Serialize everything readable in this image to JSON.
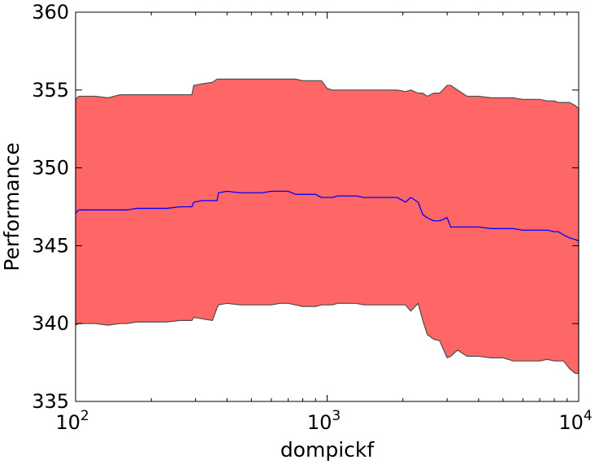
{
  "chart_data": {
    "type": "area",
    "xlabel": "dompickf",
    "ylabel": "Performance",
    "x_scale": "log",
    "xlim": [
      100,
      10000
    ],
    "ylim": [
      335,
      360
    ],
    "grid": false,
    "x_ticks": [
      {
        "value": 100,
        "base": "10",
        "exp": "2"
      },
      {
        "value": 1000,
        "base": "10",
        "exp": "3"
      },
      {
        "value": 10000,
        "base": "10",
        "exp": "4"
      }
    ],
    "y_ticks": [
      {
        "value": 335,
        "label": "335"
      },
      {
        "value": 340,
        "label": "340"
      },
      {
        "value": 345,
        "label": "345"
      },
      {
        "value": 350,
        "label": "350"
      },
      {
        "value": 355,
        "label": "355"
      },
      {
        "value": 360,
        "label": "360"
      }
    ],
    "colors": {
      "band_fill": "#ff6666",
      "band_edge": "#4d4d4d",
      "mean_line": "#0000ff"
    },
    "x": [
      100,
      103,
      110,
      120,
      135,
      150,
      160,
      175,
      200,
      230,
      260,
      290,
      295,
      320,
      350,
      365,
      370,
      400,
      450,
      500,
      550,
      600,
      650,
      700,
      750,
      800,
      850,
      900,
      950,
      1000,
      1050,
      1100,
      1200,
      1300,
      1400,
      1500,
      1700,
      1900,
      2050,
      2150,
      2300,
      2400,
      2500,
      2650,
      2800,
      3000,
      3100,
      3300,
      3600,
      4000,
      4500,
      5000,
      5500,
      6000,
      6500,
      7000,
      7500,
      8000,
      8300,
      8700,
      9200,
      9700,
      10000
    ],
    "series": [
      {
        "role": "mean",
        "values": [
          347.1,
          347.3,
          347.3,
          347.3,
          347.3,
          347.3,
          347.3,
          347.4,
          347.4,
          347.4,
          347.5,
          347.5,
          347.8,
          347.9,
          347.9,
          347.9,
          348.4,
          348.5,
          348.4,
          348.4,
          348.4,
          348.5,
          348.5,
          348.5,
          348.3,
          348.3,
          348.3,
          348.3,
          348.1,
          348.1,
          348.1,
          348.2,
          348.2,
          348.2,
          348.1,
          348.1,
          348.1,
          348.1,
          347.8,
          348.1,
          347.8,
          347.0,
          346.8,
          346.6,
          346.6,
          346.8,
          346.2,
          346.2,
          346.2,
          346.2,
          346.1,
          346.1,
          346.1,
          346.0,
          346.0,
          346.0,
          346.0,
          345.9,
          345.9,
          345.7,
          345.5,
          345.4,
          345.3
        ]
      },
      {
        "role": "upper",
        "values": [
          354.4,
          354.6,
          354.6,
          354.6,
          354.5,
          354.7,
          354.7,
          354.7,
          354.7,
          354.7,
          354.7,
          354.7,
          355.3,
          355.4,
          355.5,
          355.7,
          355.7,
          355.7,
          355.7,
          355.7,
          355.7,
          355.7,
          355.7,
          355.7,
          355.7,
          355.6,
          355.6,
          355.6,
          355.6,
          355.1,
          355.0,
          355.0,
          355.0,
          355.0,
          355.0,
          355.0,
          355.0,
          355.0,
          354.9,
          355.0,
          354.8,
          354.8,
          354.6,
          354.8,
          354.8,
          355.3,
          355.3,
          355.0,
          354.6,
          354.6,
          354.5,
          354.5,
          354.5,
          354.4,
          354.4,
          354.4,
          354.3,
          354.3,
          354.2,
          354.2,
          354.2,
          354.0,
          353.8
        ]
      },
      {
        "role": "lower",
        "values": [
          339.9,
          340.0,
          340.0,
          340.0,
          339.9,
          340.0,
          340.0,
          340.1,
          340.1,
          340.1,
          340.2,
          340.2,
          340.4,
          340.3,
          340.2,
          341.0,
          341.2,
          341.3,
          341.2,
          341.2,
          341.2,
          341.2,
          341.3,
          341.3,
          341.2,
          341.1,
          341.1,
          341.1,
          341.2,
          341.2,
          341.2,
          341.3,
          341.3,
          341.3,
          341.2,
          341.2,
          341.2,
          341.2,
          341.2,
          340.8,
          341.3,
          340.2,
          339.3,
          339.0,
          338.9,
          337.8,
          337.9,
          338.3,
          337.9,
          337.9,
          337.8,
          337.8,
          337.6,
          337.6,
          337.6,
          337.6,
          337.7,
          337.6,
          337.6,
          337.6,
          337.1,
          336.8,
          336.8
        ]
      }
    ]
  }
}
